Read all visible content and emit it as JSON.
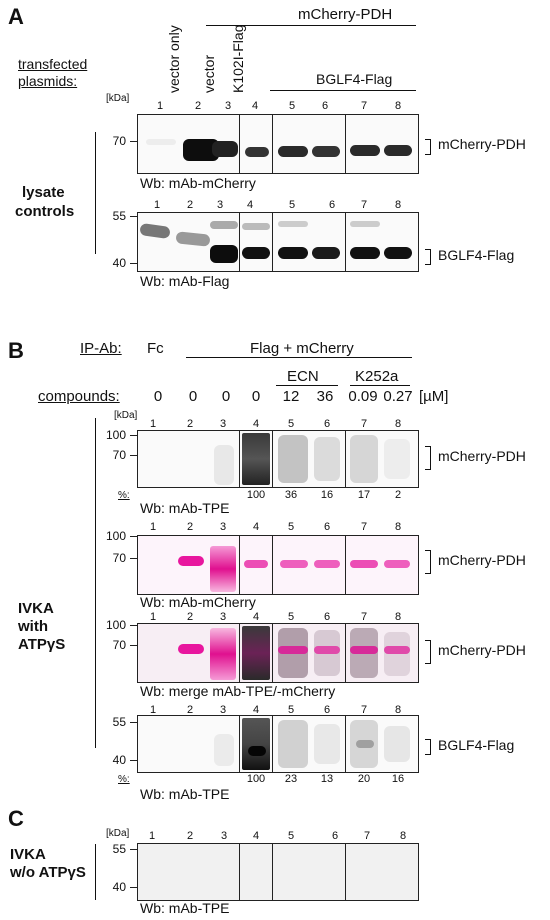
{
  "panelA": {
    "letter": "A",
    "transfected_label": "transfected plasmids:",
    "group_label": "mCherry-PDH",
    "col_labels": [
      "vector only",
      "vector",
      "K102I-Flag"
    ],
    "bglf4_group": "BGLF4-Flag",
    "kda": "[kDa]",
    "lanes": [
      "1",
      "2",
      "3",
      "4",
      "5",
      "6",
      "7",
      "8"
    ],
    "blot1": {
      "mw": [
        "70"
      ],
      "target": "mCherry-PDH",
      "wb": "Wb: mAb-mCherry"
    },
    "blot2": {
      "mw": [
        "55",
        "40"
      ],
      "target": "BGLF4-Flag",
      "wb": "Wb: mAb-Flag"
    },
    "side_label_1": "lysate",
    "side_label_2": "controls"
  },
  "panelB": {
    "letter": "B",
    "ipab_label": "IP-Ab:",
    "fc_label": "Fc",
    "group_label": "Flag + mCherry",
    "compounds_label": "compounds:",
    "ecn_label": "ECN",
    "k252a_label": "K252a",
    "conc": [
      "0",
      "0",
      "0",
      "0",
      "12",
      "36",
      "0.09",
      "0.27"
    ],
    "unit": "[µM]",
    "kda": "[kDa]",
    "lanes": [
      "1",
      "2",
      "3",
      "4",
      "5",
      "6",
      "7",
      "8"
    ],
    "pct_label": "%:",
    "blot1": {
      "mw": [
        "100",
        "70"
      ],
      "target": "mCherry-PDH",
      "wb": "Wb: mAb-TPE",
      "pct": [
        "100",
        "36",
        "16",
        "17",
        "2"
      ]
    },
    "blot2": {
      "mw": [
        "100",
        "70"
      ],
      "target": "mCherry-PDH",
      "wb": "Wb: mAb-mCherry"
    },
    "blot3": {
      "mw": [
        "100",
        "70"
      ],
      "target": "mCherry-PDH",
      "wb": "Wb: merge mAb-TPE/-mCherry"
    },
    "blot4": {
      "mw": [
        "55",
        "40"
      ],
      "target": "BGLF4-Flag",
      "wb": "Wb: mAb-TPE",
      "pct": [
        "100",
        "23",
        "13",
        "20",
        "16"
      ]
    },
    "side_1": "IVKA",
    "side_2": "with",
    "side_3": "ATPγS"
  },
  "panelC": {
    "letter": "C",
    "kda": "[kDa]",
    "lanes": [
      "1",
      "2",
      "3",
      "4",
      "5",
      "6",
      "7",
      "8"
    ],
    "mw": [
      "55",
      "40"
    ],
    "wb": "Wb: mAb-TPE",
    "side_1": "IVKA",
    "side_2": "w/o ATPγS"
  }
}
